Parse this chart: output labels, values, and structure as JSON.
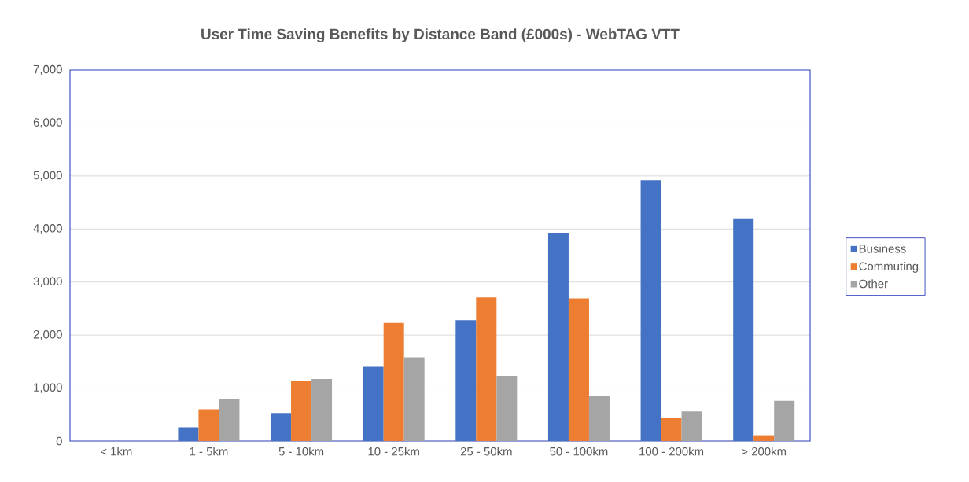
{
  "chart_data": {
    "type": "bar",
    "title": "User Time Saving Benefits by Distance Band (£000s) - WebTAG VTT",
    "categories": [
      "< 1km",
      "1 - 5km",
      "5 - 10km",
      "10 - 25km",
      "25 - 50km",
      "50 - 100km",
      "100 - 200km",
      "> 200km"
    ],
    "series": [
      {
        "name": "Business",
        "color": "#4472c4",
        "values": [
          0,
          260,
          530,
          1400,
          2280,
          3930,
          4920,
          4200
        ]
      },
      {
        "name": "Commuting",
        "color": "#ed7d31",
        "values": [
          0,
          600,
          1130,
          2230,
          2710,
          2690,
          440,
          110
        ]
      },
      {
        "name": "Other",
        "color": "#a5a5a5",
        "values": [
          0,
          790,
          1170,
          1580,
          1230,
          860,
          560,
          760
        ]
      }
    ],
    "ylim": [
      0,
      7000
    ],
    "yticks": [
      0,
      {
        "value": 1000,
        "label": "1,000"
      },
      {
        "value": 2000,
        "label": "2,000"
      },
      {
        "value": 3000,
        "label": "3,000"
      },
      {
        "value": 4000,
        "label": "4,000"
      },
      {
        "value": 5000,
        "label": "5,000"
      },
      {
        "value": 6000,
        "label": "6,000"
      },
      {
        "value": 7000,
        "label": "7,000"
      }
    ],
    "grid": "y",
    "legend": "right"
  }
}
